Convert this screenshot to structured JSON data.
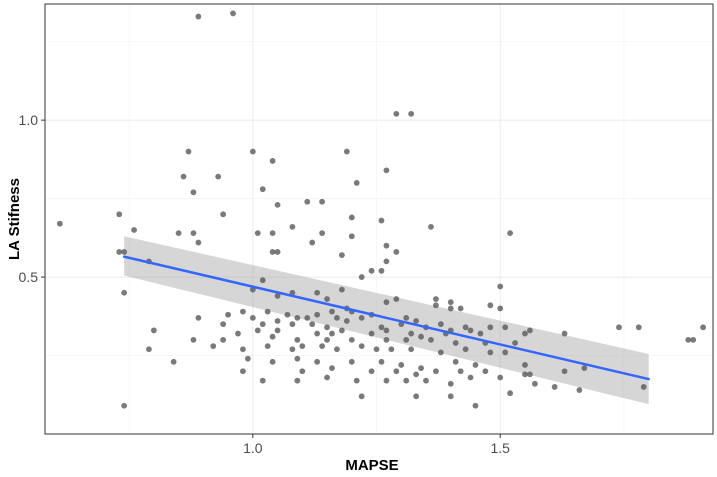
{
  "chart_data": {
    "type": "scatter",
    "xlabel": "MAPSE",
    "ylabel": "LA Stifness",
    "xlim": [
      0.58,
      1.93
    ],
    "ylim": [
      0.0,
      1.37
    ],
    "x_ticks": [
      1.0,
      1.5
    ],
    "x_tick_labels": [
      "1.0",
      "1.5"
    ],
    "y_ticks": [
      0.5,
      1.0
    ],
    "y_tick_labels": [
      "0.5",
      "1.0"
    ],
    "x_minor": [
      0.75,
      1.25,
      1.75
    ],
    "y_minor": [
      0.25,
      0.75,
      1.25
    ],
    "grid": true,
    "legend": "none",
    "colors": {
      "points": "#595959",
      "fit_line": "#3366ff",
      "ribbon": "#999999",
      "panel_background": "#ffffff",
      "grid": "#ebebeb"
    },
    "fit": {
      "method": "linear",
      "x": [
        0.74,
        1.8
      ],
      "y": [
        0.565,
        0.175
      ],
      "ci_lower": [
        0.505,
        0.095
      ],
      "ci_upper": [
        0.63,
        0.255
      ]
    },
    "points": [
      [
        0.89,
        1.33
      ],
      [
        0.96,
        1.34
      ],
      [
        1.29,
        1.02
      ],
      [
        1.32,
        1.02
      ],
      [
        0.87,
        0.9
      ],
      [
        1.0,
        0.9
      ],
      [
        1.19,
        0.9
      ],
      [
        1.04,
        0.87
      ],
      [
        1.27,
        0.84
      ],
      [
        0.86,
        0.82
      ],
      [
        0.93,
        0.82
      ],
      [
        1.21,
        0.8
      ],
      [
        0.88,
        0.77
      ],
      [
        1.02,
        0.78
      ],
      [
        1.11,
        0.74
      ],
      [
        1.14,
        0.74
      ],
      [
        1.05,
        0.73
      ],
      [
        0.61,
        0.67
      ],
      [
        0.73,
        0.7
      ],
      [
        0.94,
        0.7
      ],
      [
        1.2,
        0.69
      ],
      [
        1.26,
        0.68
      ],
      [
        1.08,
        0.66
      ],
      [
        1.36,
        0.66
      ],
      [
        0.76,
        0.65
      ],
      [
        0.85,
        0.64
      ],
      [
        0.88,
        0.64
      ],
      [
        1.01,
        0.64
      ],
      [
        1.04,
        0.64
      ],
      [
        1.14,
        0.64
      ],
      [
        1.2,
        0.63
      ],
      [
        1.52,
        0.64
      ],
      [
        0.89,
        0.61
      ],
      [
        1.12,
        0.61
      ],
      [
        1.27,
        0.6
      ],
      [
        0.73,
        0.58
      ],
      [
        0.74,
        0.58
      ],
      [
        1.04,
        0.58
      ],
      [
        1.05,
        0.58
      ],
      [
        1.18,
        0.57
      ],
      [
        1.29,
        0.58
      ],
      [
        0.79,
        0.55
      ],
      [
        1.27,
        0.55
      ],
      [
        1.24,
        0.52
      ],
      [
        1.26,
        0.52
      ],
      [
        1.22,
        0.5
      ],
      [
        1.02,
        0.49
      ],
      [
        1.0,
        0.46
      ],
      [
        0.74,
        0.45
      ],
      [
        1.18,
        0.46
      ],
      [
        1.5,
        0.47
      ],
      [
        1.05,
        0.44
      ],
      [
        1.08,
        0.45
      ],
      [
        1.13,
        0.45
      ],
      [
        1.15,
        0.43
      ],
      [
        1.27,
        0.42
      ],
      [
        1.29,
        0.43
      ],
      [
        1.37,
        0.43
      ],
      [
        1.4,
        0.42
      ],
      [
        1.19,
        0.4
      ],
      [
        1.37,
        0.41
      ],
      [
        1.4,
        0.4
      ],
      [
        1.42,
        0.4
      ],
      [
        1.48,
        0.41
      ],
      [
        1.5,
        0.4
      ],
      [
        0.95,
        0.38
      ],
      [
        0.98,
        0.39
      ],
      [
        1.03,
        0.39
      ],
      [
        1.07,
        0.38
      ],
      [
        1.16,
        0.39
      ],
      [
        1.2,
        0.39
      ],
      [
        1.24,
        0.38
      ],
      [
        0.89,
        0.37
      ],
      [
        1.0,
        0.37
      ],
      [
        1.09,
        0.37
      ],
      [
        1.11,
        0.37
      ],
      [
        1.13,
        0.38
      ],
      [
        1.17,
        0.37
      ],
      [
        1.19,
        0.36
      ],
      [
        1.22,
        0.37
      ],
      [
        1.31,
        0.37
      ],
      [
        1.33,
        0.36
      ],
      [
        1.38,
        0.35
      ],
      [
        0.94,
        0.35
      ],
      [
        1.02,
        0.35
      ],
      [
        1.05,
        0.36
      ],
      [
        1.08,
        0.35
      ],
      [
        1.12,
        0.35
      ],
      [
        1.15,
        0.34
      ],
      [
        1.26,
        0.34
      ],
      [
        1.3,
        0.35
      ],
      [
        1.35,
        0.34
      ],
      [
        1.4,
        0.33
      ],
      [
        1.43,
        0.34
      ],
      [
        1.44,
        0.33
      ],
      [
        1.48,
        0.34
      ],
      [
        1.51,
        0.34
      ],
      [
        1.56,
        0.33
      ],
      [
        0.8,
        0.33
      ],
      [
        0.97,
        0.32
      ],
      [
        1.01,
        0.33
      ],
      [
        1.05,
        0.33
      ],
      [
        1.13,
        0.32
      ],
      [
        1.16,
        0.32
      ],
      [
        1.18,
        0.33
      ],
      [
        1.24,
        0.32
      ],
      [
        1.27,
        0.33
      ],
      [
        1.32,
        0.32
      ],
      [
        1.34,
        0.31
      ],
      [
        1.39,
        0.32
      ],
      [
        1.46,
        0.32
      ],
      [
        1.55,
        0.32
      ],
      [
        1.63,
        0.32
      ],
      [
        1.74,
        0.34
      ],
      [
        1.78,
        0.34
      ],
      [
        1.88,
        0.3
      ],
      [
        1.89,
        0.3
      ],
      [
        1.91,
        0.34
      ],
      [
        0.88,
        0.3
      ],
      [
        0.94,
        0.3
      ],
      [
        1.04,
        0.31
      ],
      [
        1.09,
        0.3
      ],
      [
        1.15,
        0.3
      ],
      [
        1.2,
        0.3
      ],
      [
        1.27,
        0.3
      ],
      [
        1.31,
        0.3
      ],
      [
        1.36,
        0.3
      ],
      [
        1.41,
        0.29
      ],
      [
        1.47,
        0.29
      ],
      [
        1.53,
        0.29
      ],
      [
        0.79,
        0.27
      ],
      [
        0.92,
        0.28
      ],
      [
        0.98,
        0.27
      ],
      [
        1.03,
        0.28
      ],
      [
        1.08,
        0.27
      ],
      [
        1.1,
        0.28
      ],
      [
        1.14,
        0.28
      ],
      [
        1.17,
        0.27
      ],
      [
        1.22,
        0.28
      ],
      [
        1.25,
        0.27
      ],
      [
        1.28,
        0.27
      ],
      [
        1.32,
        0.27
      ],
      [
        1.38,
        0.26
      ],
      [
        1.43,
        0.27
      ],
      [
        1.48,
        0.26
      ],
      [
        1.51,
        0.26
      ],
      [
        0.84,
        0.23
      ],
      [
        0.99,
        0.24
      ],
      [
        1.04,
        0.23
      ],
      [
        1.09,
        0.24
      ],
      [
        1.13,
        0.23
      ],
      [
        1.2,
        0.23
      ],
      [
        1.26,
        0.23
      ],
      [
        1.3,
        0.22
      ],
      [
        1.34,
        0.21
      ],
      [
        1.41,
        0.23
      ],
      [
        1.45,
        0.22
      ],
      [
        1.55,
        0.22
      ],
      [
        0.98,
        0.2
      ],
      [
        1.1,
        0.2
      ],
      [
        1.16,
        0.21
      ],
      [
        1.24,
        0.2
      ],
      [
        1.29,
        0.2
      ],
      [
        1.33,
        0.19
      ],
      [
        1.37,
        0.2
      ],
      [
        1.42,
        0.2
      ],
      [
        1.47,
        0.2
      ],
      [
        1.55,
        0.19
      ],
      [
        1.56,
        0.19
      ],
      [
        1.63,
        0.2
      ],
      [
        1.67,
        0.21
      ],
      [
        1.02,
        0.17
      ],
      [
        1.09,
        0.17
      ],
      [
        1.15,
        0.18
      ],
      [
        1.21,
        0.17
      ],
      [
        1.27,
        0.17
      ],
      [
        1.31,
        0.17
      ],
      [
        1.35,
        0.17
      ],
      [
        1.4,
        0.16
      ],
      [
        1.44,
        0.18
      ],
      [
        1.5,
        0.18
      ],
      [
        1.57,
        0.16
      ],
      [
        1.61,
        0.15
      ],
      [
        1.66,
        0.14
      ],
      [
        1.79,
        0.15
      ],
      [
        1.22,
        0.12
      ],
      [
        1.33,
        0.12
      ],
      [
        1.4,
        0.12
      ],
      [
        1.52,
        0.13
      ],
      [
        0.74,
        0.09
      ],
      [
        1.45,
        0.09
      ]
    ]
  }
}
